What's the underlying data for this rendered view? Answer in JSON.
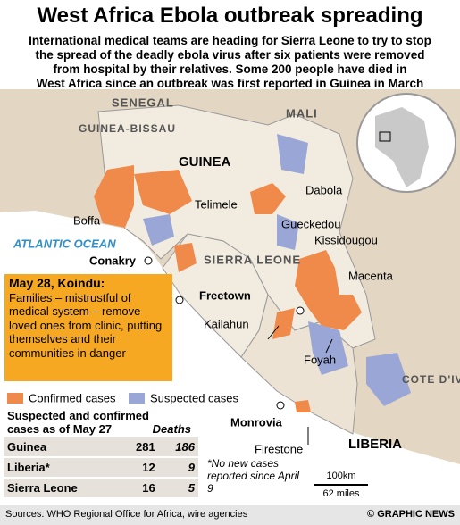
{
  "header": {
    "title": "West Africa Ebola outbreak spreading",
    "subtitle_lines": [
      "International medical teams are heading for Sierra Leone to try to stop",
      "the spread of the deadly ebola virus after six patients were removed",
      "from hospital by their relatives. Some 200 people have died in",
      "West Africa since an outbreak was first reported in Guinea in March"
    ]
  },
  "map": {
    "labels": {
      "senegal": "SENEGAL",
      "mali": "MALI",
      "guinea_bissau": "GUINEA-BISSAU",
      "guinea": "GUINEA",
      "telimele": "Telimele",
      "dabola": "Dabola",
      "boffa": "Boffa",
      "ocean": "ATLANTIC OCEAN",
      "conakry": "Conakry",
      "sierra_leone": "SIERRA LEONE",
      "gueckedou": "Gueckedou",
      "kissidougou": "Kissidougou",
      "macenta": "Macenta",
      "freetown": "Freetown",
      "kailahun": "Kailahun",
      "foyah": "Foyah",
      "cote_divoire": "COTE D'IVOIRE",
      "monrovia": "Monrovia",
      "liberia": "LIBERIA",
      "firestone": "Firestone"
    },
    "scale": {
      "km": "100km",
      "miles": "62 miles"
    },
    "footnote": "*No new cases reported since April 9"
  },
  "callout": {
    "title": "May 28, Koindu:",
    "body": "Families – mistrustful of medical system – remove loved ones from clinic, putting themselves and their communities in danger"
  },
  "legend": {
    "confirmed": "Confirmed cases",
    "suspected": "Suspected cases"
  },
  "table": {
    "title": "Suspected and confirmed cases as of May 27",
    "deaths_header": "Deaths",
    "rows": [
      [
        "Guinea",
        281,
        186
      ],
      [
        "Liberia*",
        12,
        9
      ],
      [
        "Sierra Leone",
        16,
        5
      ]
    ]
  },
  "footer": {
    "sources": "Sources: WHO Regional Office for Africa, wire agencies",
    "credit": "© GRAPHIC NEWS"
  }
}
